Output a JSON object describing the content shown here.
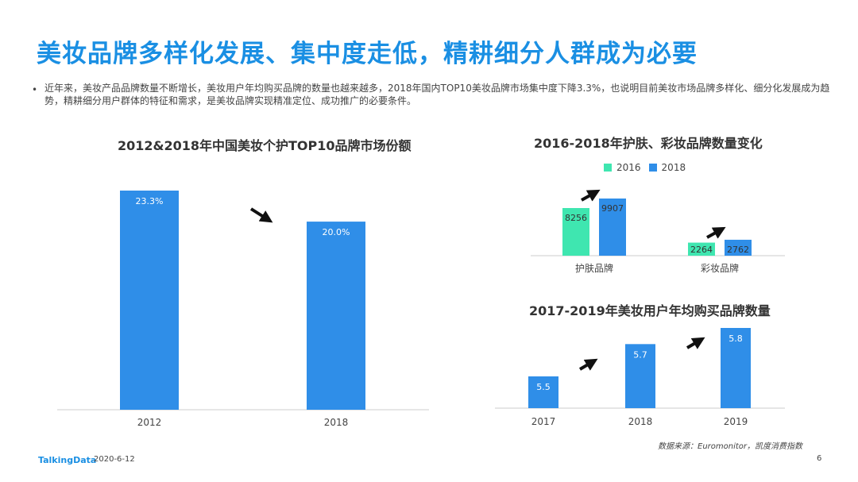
{
  "slide": {
    "title": "美妆品牌多样化发展、集中度走低，精耕细分人群成为必要",
    "bullet": "•",
    "description": "近年来，美妆产品品牌数量不断增长，美妆用户年均购买品牌的数量也越来越多，2018年国内TOP10美妆品牌市场集中度下降3.3%，也说明目前美妆市场品牌多样化、细分化发展成为趋势，精耕细分用户群体的特征和需求，是美妆品牌实现精准定位、成功推广的必要条件。",
    "source": "数据来源：Euromonitor，凯度消费指数",
    "footer_logo": "TalkingData",
    "footer_date": "2020-6-12",
    "page_number": "6"
  },
  "colors": {
    "accent": "#1a8fe3",
    "bar_blue": "#2f8ee8",
    "bar_green": "#3fe6b0",
    "arrow": "#111111"
  },
  "chart_data": [
    {
      "type": "bar",
      "title": "2012&2018年中国美妆个护TOP10品牌市场份额",
      "categories": [
        "2012",
        "2018"
      ],
      "values": [
        23.3,
        20.0
      ],
      "value_labels": [
        "23.3%",
        "20.0%"
      ],
      "ylim": [
        0,
        25
      ],
      "trend": "down"
    },
    {
      "type": "bar",
      "title": "2016-2018年护肤、彩妆品牌数量变化",
      "categories": [
        "护肤品牌",
        "彩妆品牌"
      ],
      "series": [
        {
          "name": "2016",
          "values": [
            8256,
            2264
          ],
          "color": "#3fe6b0"
        },
        {
          "name": "2018",
          "values": [
            9907,
            2762
          ],
          "color": "#2f8ee8"
        }
      ],
      "legend_position": "top-center",
      "trend": "up"
    },
    {
      "type": "bar",
      "title": "2017-2019年美妆用户年均购买品牌数量",
      "categories": [
        "2017",
        "2018",
        "2019"
      ],
      "values": [
        5.5,
        5.7,
        5.8
      ],
      "value_labels": [
        "5.5",
        "5.7",
        "5.8"
      ],
      "trend": "up"
    }
  ]
}
